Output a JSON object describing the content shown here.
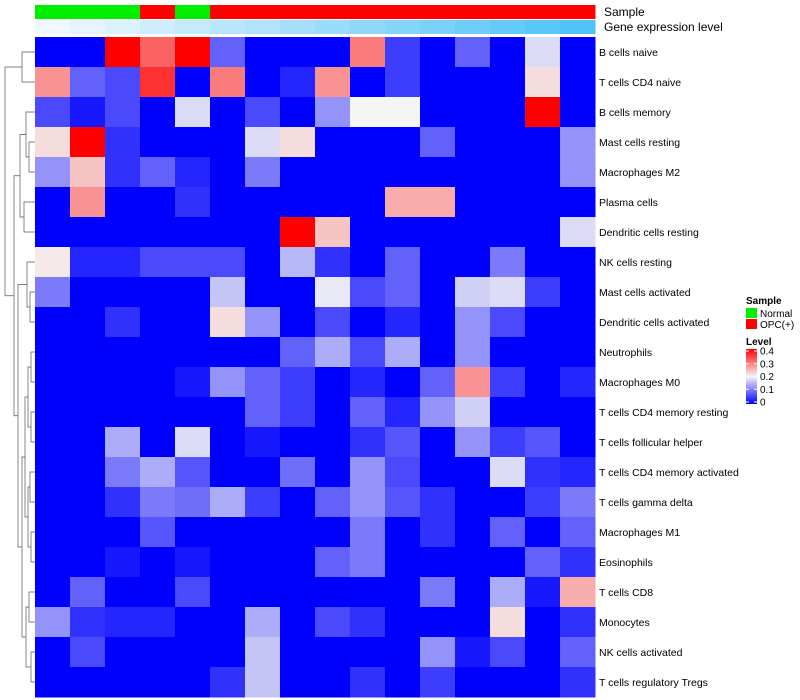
{
  "chart_data": {
    "type": "heatmap",
    "title": "",
    "xlabel": "",
    "ylabel": "",
    "rows": [
      "B cells naive",
      "T cells CD4 naive",
      "B cells memory",
      "Mast cells resting",
      "Macrophages M2",
      "Plasma cells",
      "Dendritic cells resting",
      "NK cells resting",
      "Mast cells activated",
      "Dendritic cells activated",
      "Neutrophils",
      "Macrophages M0",
      "T cells CD4 memory resting",
      "T cells follicular helper",
      "T cells CD4 memory activated",
      "T cells gamma delta",
      "Macrophages M1",
      "Eosinophils",
      "T cells CD8",
      "Monocytes",
      "NK cells activated",
      "T cells regulatory  Tregs"
    ],
    "sample_groups": [
      "Normal",
      "Normal",
      "Normal",
      "OPC(+)",
      "Normal",
      "OPC(+)",
      "OPC(+)",
      "OPC(+)",
      "OPC(+)",
      "OPC(+)",
      "OPC(+)",
      "OPC(+)",
      "OPC(+)",
      "OPC(+)",
      "OPC(+)",
      "OPC(+)"
    ],
    "gene_expression_level": [
      0.02,
      0.04,
      0.06,
      0.08,
      0.1,
      0.12,
      0.14,
      0.16,
      0.18,
      0.2,
      0.22,
      0.24,
      0.26,
      0.28,
      0.3,
      0.32
    ],
    "values": [
      [
        0.0,
        0.0,
        0.4,
        0.32,
        0.4,
        0.08,
        0.0,
        0.0,
        0.0,
        0.3,
        0.05,
        0.0,
        0.08,
        0.0,
        0.18,
        0.0
      ],
      [
        0.28,
        0.08,
        0.06,
        0.36,
        0.0,
        0.3,
        0.0,
        0.03,
        0.28,
        0.0,
        0.05,
        0.0,
        0.0,
        0.0,
        0.22,
        0.0
      ],
      [
        0.06,
        0.02,
        0.06,
        0.0,
        0.18,
        0.0,
        0.06,
        0.0,
        0.12,
        0.2,
        0.2,
        0.0,
        0.0,
        0.0,
        0.4,
        0.0
      ],
      [
        0.22,
        0.4,
        0.04,
        0.0,
        0.0,
        0.0,
        0.18,
        0.22,
        0.0,
        0.0,
        0.0,
        0.08,
        0.0,
        0.0,
        0.0,
        0.12
      ],
      [
        0.12,
        0.24,
        0.04,
        0.08,
        0.03,
        0.0,
        0.1,
        0.0,
        0.0,
        0.0,
        0.0,
        0.0,
        0.0,
        0.0,
        0.0,
        0.12
      ],
      [
        0.0,
        0.28,
        0.0,
        0.0,
        0.04,
        0.0,
        0.0,
        0.0,
        0.0,
        0.0,
        0.26,
        0.26,
        0.0,
        0.0,
        0.0,
        0.0
      ],
      [
        0.0,
        0.0,
        0.0,
        0.0,
        0.0,
        0.0,
        0.0,
        0.4,
        0.24,
        0.0,
        0.0,
        0.0,
        0.0,
        0.0,
        0.0,
        0.18
      ],
      [
        0.21,
        0.03,
        0.03,
        0.06,
        0.06,
        0.06,
        0.0,
        0.15,
        0.04,
        0.0,
        0.08,
        0.0,
        0.0,
        0.1,
        0.0,
        0.0
      ],
      [
        0.1,
        0.0,
        0.0,
        0.0,
        0.0,
        0.16,
        0.0,
        0.0,
        0.19,
        0.06,
        0.08,
        0.0,
        0.17,
        0.18,
        0.05,
        0.0
      ],
      [
        0.0,
        0.0,
        0.04,
        0.0,
        0.0,
        0.22,
        0.12,
        0.0,
        0.06,
        0.0,
        0.03,
        0.0,
        0.12,
        0.06,
        0.0,
        0.0
      ],
      [
        0.0,
        0.0,
        0.0,
        0.0,
        0.0,
        0.0,
        0.0,
        0.08,
        0.14,
        0.06,
        0.14,
        0.0,
        0.12,
        0.0,
        0.0,
        0.0
      ],
      [
        0.0,
        0.0,
        0.0,
        0.0,
        0.02,
        0.12,
        0.08,
        0.05,
        0.0,
        0.03,
        0.0,
        0.08,
        0.28,
        0.05,
        0.0,
        0.03
      ],
      [
        0.0,
        0.0,
        0.0,
        0.0,
        0.0,
        0.0,
        0.08,
        0.05,
        0.0,
        0.08,
        0.03,
        0.12,
        0.17,
        0.0,
        0.0,
        0.0
      ],
      [
        0.0,
        0.0,
        0.14,
        0.0,
        0.18,
        0.0,
        0.02,
        0.0,
        0.0,
        0.04,
        0.07,
        0.0,
        0.12,
        0.05,
        0.07,
        0.0
      ],
      [
        0.0,
        0.0,
        0.1,
        0.14,
        0.07,
        0.0,
        0.0,
        0.09,
        0.0,
        0.12,
        0.06,
        0.0,
        0.0,
        0.18,
        0.04,
        0.03
      ],
      [
        0.0,
        0.0,
        0.04,
        0.1,
        0.09,
        0.14,
        0.05,
        0.0,
        0.08,
        0.12,
        0.07,
        0.04,
        0.0,
        0.0,
        0.05,
        0.1
      ],
      [
        0.0,
        0.0,
        0.0,
        0.07,
        0.0,
        0.0,
        0.0,
        0.0,
        0.0,
        0.1,
        0.0,
        0.04,
        0.0,
        0.08,
        0.0,
        0.08
      ],
      [
        0.0,
        0.0,
        0.02,
        0.0,
        0.02,
        0.0,
        0.0,
        0.0,
        0.08,
        0.1,
        0.0,
        0.0,
        0.0,
        0.0,
        0.08,
        0.04
      ],
      [
        0.0,
        0.08,
        0.0,
        0.0,
        0.06,
        0.0,
        0.0,
        0.0,
        0.0,
        0.0,
        0.0,
        0.1,
        0.0,
        0.14,
        0.02,
        0.26
      ],
      [
        0.12,
        0.04,
        0.03,
        0.03,
        0.0,
        0.0,
        0.14,
        0.0,
        0.06,
        0.04,
        0.0,
        0.0,
        0.0,
        0.22,
        0.0,
        0.04
      ],
      [
        0.0,
        0.06,
        0.0,
        0.0,
        0.0,
        0.0,
        0.16,
        0.0,
        0.0,
        0.0,
        0.0,
        0.12,
        0.02,
        0.06,
        0.0,
        0.08
      ],
      [
        0.0,
        0.0,
        0.0,
        0.0,
        0.0,
        0.04,
        0.16,
        0.0,
        0.0,
        0.04,
        0.0,
        0.05,
        0.0,
        0.0,
        0.0,
        0.04
      ]
    ],
    "color_scale": {
      "low": "#0000FF",
      "mid": "#F5F5F5",
      "high": "#FF0000",
      "min": 0,
      "mid_value": 0.2,
      "max": 0.4
    },
    "annotation_labels": {
      "sample": "Sample",
      "gene_expression": "Gene expression level"
    },
    "legends": {
      "sample": {
        "title": "Sample",
        "entries": [
          {
            "label": "Normal",
            "color": "#00EE00"
          },
          {
            "label": "OPC(+)",
            "color": "#FF0000"
          }
        ]
      },
      "level": {
        "title": "Level",
        "ticks": [
          "0.4",
          "0.3",
          "0.2",
          "0.1",
          "0"
        ]
      }
    },
    "annotation_colors": {
      "Normal": "#00EE00",
      "OPC(+)": "#FF0000",
      "gene_low": "#F0F8FF",
      "gene_high": "#4FC3F7"
    },
    "dendrogram": "rows",
    "grid": false,
    "legend_position": "right"
  }
}
